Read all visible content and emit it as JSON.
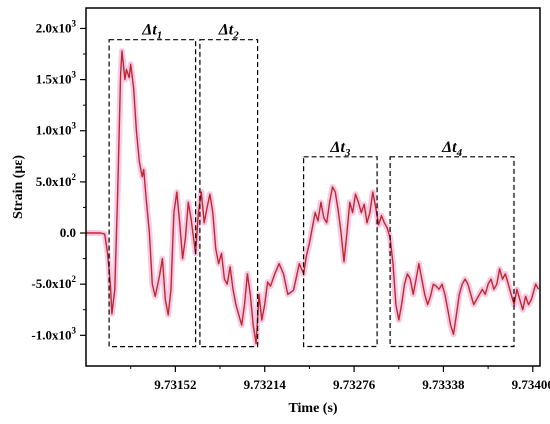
{
  "chart_data": {
    "type": "line",
    "title": "",
    "xlabel": "Time (s)",
    "ylabel": "Strain (με)",
    "xlim": [
      9.7309,
      9.73405
    ],
    "ylim": [
      -1300,
      2200
    ],
    "grid": false,
    "x_ticks": [
      {
        "value": 9.73152,
        "label": "9.73152"
      },
      {
        "value": 9.73214,
        "label": "9.73214"
      },
      {
        "value": 9.73276,
        "label": "9.73276"
      },
      {
        "value": 9.73338,
        "label": "9.73338"
      },
      {
        "value": 9.734,
        "label": "9.73400"
      }
    ],
    "y_ticks": [
      {
        "value": -1000,
        "mant": "-1.0x10",
        "exp": "3"
      },
      {
        "value": -500,
        "mant": "-5.0x10",
        "exp": "2"
      },
      {
        "value": 0,
        "mant": "0.0",
        "exp": ""
      },
      {
        "value": 500,
        "mant": "5.0x10",
        "exp": "2"
      },
      {
        "value": 1000,
        "mant": "1.0x10",
        "exp": "3"
      },
      {
        "value": 1500,
        "mant": "1.5x10",
        "exp": "3"
      },
      {
        "value": 2000,
        "mant": "2.0x10",
        "exp": "3"
      }
    ],
    "regions": [
      {
        "label": "Δt",
        "sub": "1",
        "x0": 9.73106,
        "x1": 9.73166,
        "y0": -1110,
        "y1": 1890
      },
      {
        "label": "Δt",
        "sub": "2",
        "x0": 9.73169,
        "x1": 9.73209,
        "y0": -1110,
        "y1": 1890
      },
      {
        "label": "Δt",
        "sub": "3",
        "x0": 9.73241,
        "x1": 9.73292,
        "y0": -1110,
        "y1": 745
      },
      {
        "label": "Δt",
        "sub": "4",
        "x0": 9.73301,
        "x1": 9.73387,
        "y0": -1110,
        "y1": 745
      }
    ],
    "series": [
      {
        "color": "#c0282e",
        "band_color": "#f2b8dc",
        "points": [
          [
            9.7309,
            0
          ],
          [
            9.731,
            0
          ],
          [
            9.73103,
            -10
          ],
          [
            9.73105,
            -200
          ],
          [
            9.73107,
            -520
          ],
          [
            9.73108,
            -790
          ],
          [
            9.7311,
            -550
          ],
          [
            9.73112,
            400
          ],
          [
            9.73114,
            1550
          ],
          [
            9.73115,
            1780
          ],
          [
            9.73117,
            1500
          ],
          [
            9.73118,
            1600
          ],
          [
            9.7312,
            1520
          ],
          [
            9.73121,
            1650
          ],
          [
            9.73123,
            1420
          ],
          [
            9.73125,
            1000
          ],
          [
            9.73127,
            700
          ],
          [
            9.73129,
            550
          ],
          [
            9.7313,
            620
          ],
          [
            9.73132,
            300
          ],
          [
            9.73134,
            0
          ],
          [
            9.73136,
            -500
          ],
          [
            9.73138,
            -620
          ],
          [
            9.73141,
            -420
          ],
          [
            9.73143,
            -250
          ],
          [
            9.73145,
            -650
          ],
          [
            9.73147,
            -800
          ],
          [
            9.73149,
            -550
          ],
          [
            9.73151,
            200
          ],
          [
            9.73153,
            400
          ],
          [
            9.73155,
            100
          ],
          [
            9.73157,
            -250
          ],
          [
            9.73159,
            -50
          ],
          [
            9.73161,
            300
          ],
          [
            9.73163,
            130
          ],
          [
            9.73166,
            -200
          ],
          [
            9.73168,
            200
          ],
          [
            9.7317,
            400
          ],
          [
            9.73172,
            100
          ],
          [
            9.73174,
            250
          ],
          [
            9.73176,
            380
          ],
          [
            9.73178,
            200
          ],
          [
            9.7318,
            -150
          ],
          [
            9.73182,
            -300
          ],
          [
            9.73184,
            -200
          ],
          [
            9.73186,
            -450
          ],
          [
            9.73188,
            -500
          ],
          [
            9.7319,
            -330
          ],
          [
            9.73192,
            -550
          ],
          [
            9.73194,
            -700
          ],
          [
            9.73196,
            -800
          ],
          [
            9.73198,
            -900
          ],
          [
            9.732,
            -700
          ],
          [
            9.73202,
            -400
          ],
          [
            9.73204,
            -600
          ],
          [
            9.73206,
            -900
          ],
          [
            9.73208,
            -1080
          ],
          [
            9.7321,
            -600
          ],
          [
            9.73212,
            -850
          ],
          [
            9.73214,
            -700
          ],
          [
            9.73216,
            -480
          ],
          [
            9.73218,
            -520
          ],
          [
            9.73221,
            -400
          ],
          [
            9.73224,
            -300
          ],
          [
            9.73227,
            -400
          ],
          [
            9.7323,
            -600
          ],
          [
            9.73234,
            -560
          ],
          [
            9.73238,
            -300
          ],
          [
            9.73241,
            -400
          ],
          [
            9.73243,
            -220
          ],
          [
            9.73245,
            -100
          ],
          [
            9.73247,
            50
          ],
          [
            9.73249,
            200
          ],
          [
            9.73251,
            120
          ],
          [
            9.73253,
            300
          ],
          [
            9.73255,
            150
          ],
          [
            9.73257,
            100
          ],
          [
            9.73259,
            300
          ],
          [
            9.73261,
            450
          ],
          [
            9.73263,
            400
          ],
          [
            9.73265,
            220
          ],
          [
            9.73267,
            0
          ],
          [
            9.73269,
            -280
          ],
          [
            9.73271,
            0
          ],
          [
            9.73273,
            300
          ],
          [
            9.73275,
            200
          ],
          [
            9.73277,
            380
          ],
          [
            9.73279,
            300
          ],
          [
            9.73281,
            200
          ],
          [
            9.73283,
            280
          ],
          [
            9.73285,
            100
          ],
          [
            9.73287,
            200
          ],
          [
            9.73289,
            400
          ],
          [
            9.73291,
            250
          ],
          [
            9.73293,
            80
          ],
          [
            9.73295,
            170
          ],
          [
            9.73297,
            100
          ],
          [
            9.73299,
            50
          ],
          [
            9.73301,
            -50
          ],
          [
            9.73303,
            -300
          ],
          [
            9.73305,
            -700
          ],
          [
            9.73307,
            -850
          ],
          [
            9.73309,
            -700
          ],
          [
            9.73311,
            -500
          ],
          [
            9.73313,
            -400
          ],
          [
            9.73315,
            -450
          ],
          [
            9.73317,
            -600
          ],
          [
            9.73319,
            -450
          ],
          [
            9.73321,
            -300
          ],
          [
            9.73323,
            -450
          ],
          [
            9.73325,
            -600
          ],
          [
            9.73327,
            -700
          ],
          [
            9.73329,
            -620
          ],
          [
            9.73331,
            -500
          ],
          [
            9.73333,
            -520
          ],
          [
            9.73335,
            -550
          ],
          [
            9.73337,
            -500
          ],
          [
            9.73339,
            -600
          ],
          [
            9.73341,
            -750
          ],
          [
            9.73343,
            -900
          ],
          [
            9.73345,
            -990
          ],
          [
            9.73347,
            -800
          ],
          [
            9.73349,
            -600
          ],
          [
            9.73351,
            -500
          ],
          [
            9.73353,
            -450
          ],
          [
            9.73355,
            -500
          ],
          [
            9.73357,
            -600
          ],
          [
            9.73359,
            -700
          ],
          [
            9.73361,
            -650
          ],
          [
            9.73363,
            -600
          ],
          [
            9.73365,
            -550
          ],
          [
            9.73367,
            -600
          ],
          [
            9.73369,
            -500
          ],
          [
            9.73371,
            -450
          ],
          [
            9.73373,
            -550
          ],
          [
            9.73375,
            -500
          ],
          [
            9.73377,
            -350
          ],
          [
            9.73379,
            -450
          ],
          [
            9.73381,
            -400
          ],
          [
            9.73383,
            -500
          ],
          [
            9.73385,
            -600
          ],
          [
            9.73387,
            -700
          ],
          [
            9.73389,
            -550
          ],
          [
            9.73391,
            -650
          ],
          [
            9.73393,
            -750
          ],
          [
            9.73395,
            -620
          ],
          [
            9.73397,
            -700
          ],
          [
            9.73399,
            -650
          ],
          [
            9.734,
            -600
          ],
          [
            9.73402,
            -500
          ],
          [
            9.73404,
            -550
          ]
        ]
      }
    ]
  }
}
